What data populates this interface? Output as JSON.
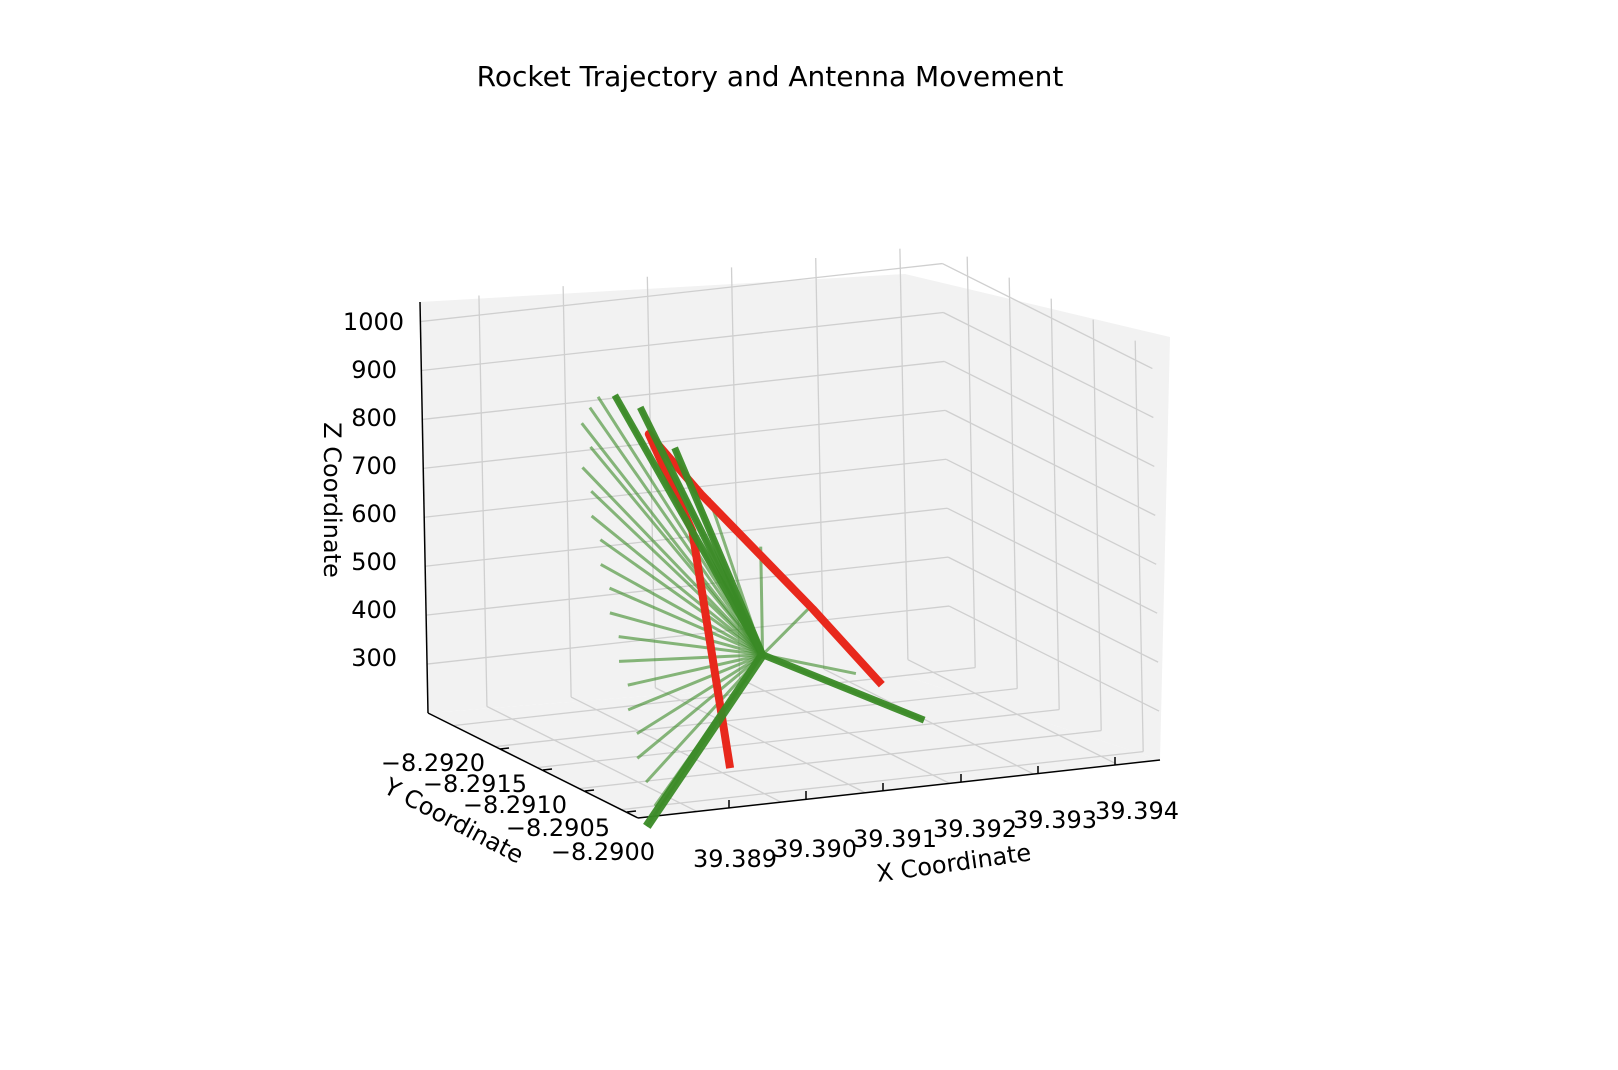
{
  "chart_data": {
    "type": "line3d",
    "title": "Rocket Trajectory and Antenna Movement",
    "xlabel": "X Coordinate",
    "ylabel": "Y Coordinate",
    "zlabel": "Z Coordinate",
    "xticks": [
      "39.389",
      "39.390",
      "39.391",
      "39.392",
      "39.393",
      "39.394"
    ],
    "yticks": [
      "−8.2920",
      "−8.2915",
      "−8.2910",
      "−8.2905",
      "−8.2900"
    ],
    "zticks": [
      "300",
      "400",
      "500",
      "600",
      "700",
      "800",
      "900",
      "1000"
    ],
    "grid": true,
    "colors": {
      "trajectory": "#e8281c",
      "antenna": "#3a8a26",
      "pane": "#f2f2f2",
      "grid": "#cfcfcf"
    },
    "series": [
      {
        "role": "rocket trajectory",
        "points": [
          [
            39.3896,
            -8.29,
            260
          ],
          [
            39.3897,
            -8.2905,
            700
          ],
          [
            39.3897,
            -8.291,
            855
          ],
          [
            39.3905,
            -8.2912,
            700
          ],
          [
            39.3918,
            -8.2912,
            440
          ],
          [
            39.3926,
            -8.2912,
            270
          ]
        ]
      },
      {
        "role": "antenna direction",
        "origin": [
          39.3908,
          -8.2908,
          400
        ],
        "tips": [
          [
            39.3886,
            -8.29,
            160
          ],
          [
            39.3887,
            -8.29,
            200
          ],
          [
            39.3887,
            -8.2901,
            240
          ],
          [
            39.3887,
            -8.2902,
            280
          ],
          [
            39.3888,
            -8.2903,
            320
          ],
          [
            39.3888,
            -8.2904,
            360
          ],
          [
            39.3889,
            -8.2905,
            400
          ],
          [
            39.3889,
            -8.2906,
            440
          ],
          [
            39.389,
            -8.2907,
            480
          ],
          [
            39.389,
            -8.2908,
            520
          ],
          [
            39.3891,
            -8.2909,
            560
          ],
          [
            39.3891,
            -8.291,
            600
          ],
          [
            39.3892,
            -8.2911,
            640
          ],
          [
            39.3892,
            -8.2912,
            680
          ],
          [
            39.3893,
            -8.2913,
            720
          ],
          [
            39.3893,
            -8.2914,
            760
          ],
          [
            39.3894,
            -8.2914,
            800
          ],
          [
            39.3894,
            -8.2915,
            840
          ],
          [
            39.3895,
            -8.2915,
            870
          ],
          [
            39.3896,
            -8.2915,
            890
          ],
          [
            39.3897,
            -8.2914,
            900
          ],
          [
            39.3899,
            -8.2913,
            880
          ],
          [
            39.3902,
            -8.2912,
            800
          ],
          [
            39.3905,
            -8.2911,
            700
          ],
          [
            39.391,
            -8.291,
            600
          ],
          [
            39.3915,
            -8.2909,
            480
          ],
          [
            39.392,
            -8.2909,
            330
          ],
          [
            39.3927,
            -8.2908,
            230
          ]
        ]
      }
    ]
  }
}
